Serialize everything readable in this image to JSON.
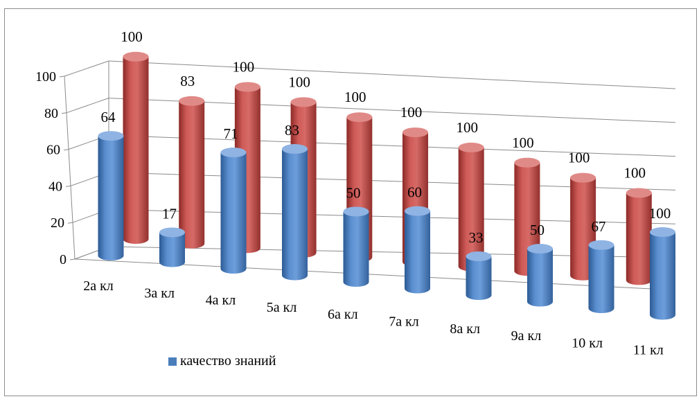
{
  "chart_data": {
    "type": "bar",
    "style": "3d-cylinder",
    "categories": [
      "2а кл",
      "3а кл",
      "4а кл",
      "5а кл",
      "6а кл",
      "7а кл",
      "8а кл",
      "9а кл",
      "10 кл",
      "11 кл"
    ],
    "series": [
      {
        "name": "качество знаний",
        "color": "#4a7ebb",
        "values": [
          64,
          17,
          71,
          83,
          50,
          60,
          33,
          50,
          67,
          100
        ]
      },
      {
        "name": "",
        "color": "#c0504d",
        "values": [
          100,
          83,
          100,
          100,
          100,
          100,
          100,
          100,
          100,
          100
        ]
      }
    ],
    "y_ticks": [
      "0",
      "20",
      "40",
      "60",
      "80",
      "100"
    ],
    "ylim": [
      0,
      100
    ],
    "grid": true,
    "legend_position": "bottom-left",
    "title": "",
    "xlabel": "",
    "ylabel": ""
  },
  "legend": {
    "label": "качество знаний"
  }
}
